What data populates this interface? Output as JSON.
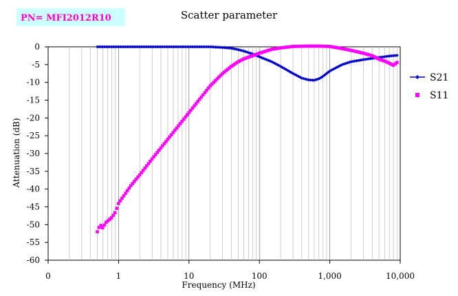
{
  "badge": {
    "text": "PN= MFI2012R10",
    "bg": "#ccffff",
    "color": "#ff00cc"
  },
  "chart_data": {
    "type": "scatter",
    "title": "Scatter parameter",
    "xlabel": "Frequency (MHz)",
    "ylabel": "Attenuation (dB)",
    "xscale": "log",
    "xlim": [
      0.1,
      10000
    ],
    "ylim": [
      -60,
      0
    ],
    "x_ticks": [
      0.1,
      1,
      10,
      100,
      1000,
      10000
    ],
    "x_tick_labels": [
      "0",
      "1",
      "10",
      "100",
      "1,000",
      "10,000"
    ],
    "y_ticks": [
      0,
      -5,
      -10,
      -15,
      -20,
      -25,
      -30,
      -35,
      -40,
      -45,
      -50,
      -55,
      -60
    ],
    "y_tick_labels": [
      "0",
      "-5",
      "-10",
      "-15",
      "-20",
      "-25",
      "-30",
      "-35",
      "-40",
      "-45",
      "-50",
      "-55",
      "-60"
    ],
    "grid": true,
    "legend_position": "right",
    "series": [
      {
        "name": "S21",
        "color": "#0000cc",
        "marker": "diamond",
        "x": [
          0.5,
          1,
          2,
          5,
          10,
          20,
          30,
          40,
          50,
          60,
          80,
          100,
          150,
          200,
          300,
          400,
          500,
          600,
          700,
          800,
          1000,
          1500,
          2000,
          3000,
          5000,
          7000,
          9000
        ],
        "y": [
          0,
          0,
          0,
          0,
          0,
          0,
          -0.2,
          -0.4,
          -0.8,
          -1.2,
          -2.0,
          -2.8,
          -4.2,
          -5.5,
          -7.5,
          -8.8,
          -9.3,
          -9.4,
          -9.0,
          -8.3,
          -6.8,
          -5.0,
          -4.2,
          -3.6,
          -3.0,
          -2.6,
          -2.4
        ]
      },
      {
        "name": "S11",
        "color": "#ff00ff",
        "marker": "square",
        "x": [
          0.5,
          0.55,
          0.6,
          0.65,
          0.7,
          0.8,
          0.9,
          1,
          1.5,
          2,
          3,
          5,
          10,
          20,
          30,
          40,
          50,
          60,
          80,
          100,
          150,
          200,
          300,
          500,
          700,
          1000,
          1500,
          2000,
          3000,
          4000,
          5000,
          6000,
          7000,
          8000,
          9000
        ],
        "y": [
          -52,
          -50,
          -51,
          -49.5,
          -49,
          -48,
          -46.5,
          -44,
          -39,
          -36,
          -31.5,
          -26,
          -18.5,
          -11,
          -7.5,
          -5.5,
          -4.2,
          -3.4,
          -2.5,
          -1.8,
          -0.7,
          -0.3,
          0.1,
          0.2,
          0.2,
          0.1,
          -0.5,
          -1.0,
          -1.8,
          -2.5,
          -3.5,
          -4.0,
          -4.6,
          -5.2,
          -4.4
        ]
      }
    ]
  }
}
